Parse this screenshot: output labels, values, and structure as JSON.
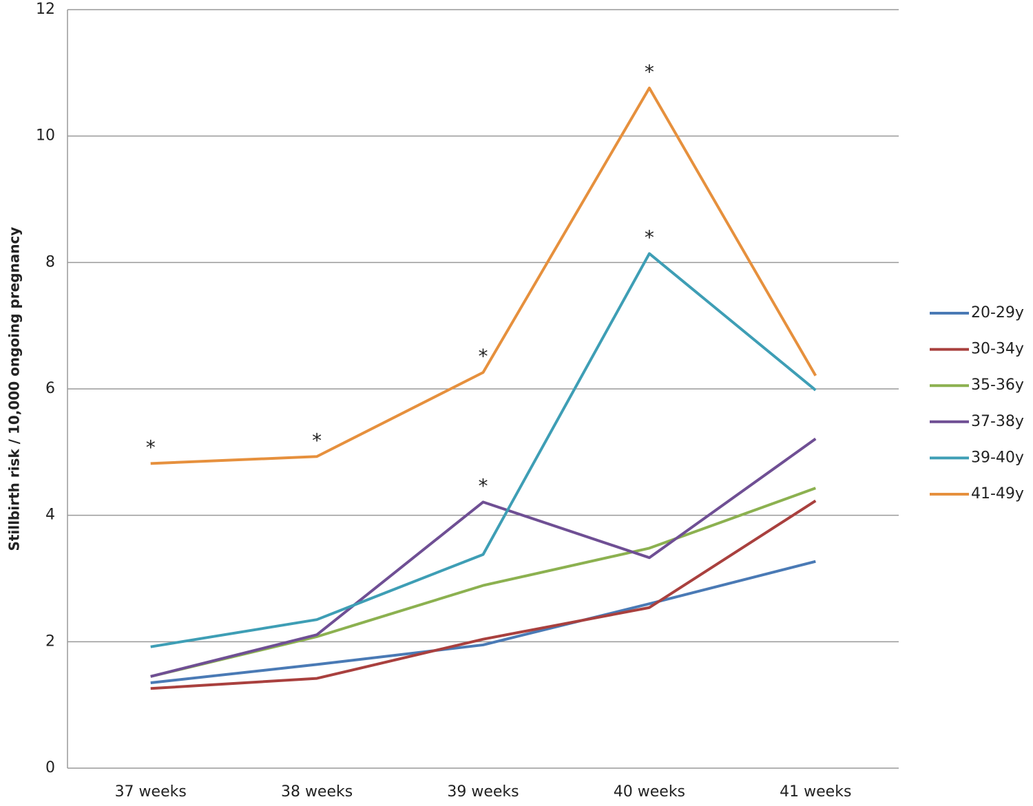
{
  "chart_data": {
    "type": "line",
    "y_label": "Stillbirth risk / 10,000 ongoing pregnancy",
    "categories": [
      "37 weeks",
      "38 weeks",
      "39 weeks",
      "40 weeks",
      "41 weeks"
    ],
    "series": [
      {
        "name": "20-29y",
        "color": "#4a7ab5",
        "values": [
          1.35,
          1.64,
          1.95,
          2.6,
          3.27
        ]
      },
      {
        "name": "30-34y",
        "color": "#a9403e",
        "values": [
          1.26,
          1.42,
          2.04,
          2.54,
          4.23
        ]
      },
      {
        "name": "35-36y",
        "color": "#8cb150",
        "values": [
          1.45,
          2.08,
          2.89,
          3.48,
          4.43
        ]
      },
      {
        "name": "37-38y",
        "color": "#6f4f94",
        "values": [
          1.45,
          2.11,
          4.21,
          3.33,
          5.21
        ],
        "point_labels": [
          null,
          null,
          "*",
          null,
          null
        ]
      },
      {
        "name": "39-40y",
        "color": "#3e9eb5",
        "values": [
          1.92,
          2.35,
          3.38,
          8.14,
          5.98
        ],
        "point_labels": [
          null,
          null,
          null,
          "*",
          null
        ]
      },
      {
        "name": "41-49y",
        "color": "#e6903d",
        "values": [
          4.82,
          4.93,
          6.26,
          10.76,
          6.21
        ],
        "point_labels": [
          "*",
          "*",
          "*",
          "*",
          null
        ]
      }
    ],
    "ylim": [
      0,
      12
    ],
    "yticks": [
      0,
      2,
      4,
      6,
      8,
      10,
      12
    ],
    "grid": true,
    "legend": "right"
  }
}
